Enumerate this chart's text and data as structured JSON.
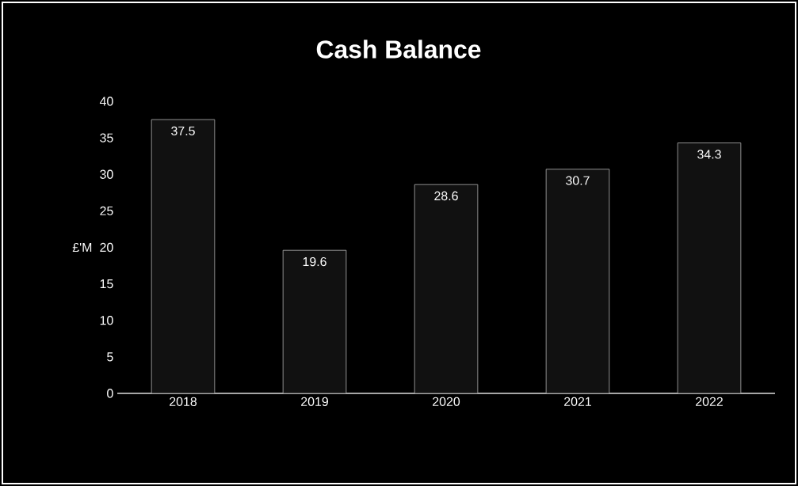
{
  "chart_data": {
    "type": "bar",
    "title": "Cash Balance",
    "ylabel": "£'M",
    "categories": [
      "2018",
      "2019",
      "2020",
      "2021",
      "2022"
    ],
    "values": [
      37.5,
      19.6,
      28.6,
      30.7,
      34.3
    ],
    "value_labels": [
      "37.5",
      "19.6",
      "28.6",
      "30.7",
      "34.3"
    ],
    "color": "#111111",
    "ylim": [
      0,
      40
    ],
    "yticks": [
      0,
      5,
      10,
      15,
      20,
      25,
      30,
      35,
      40
    ]
  }
}
